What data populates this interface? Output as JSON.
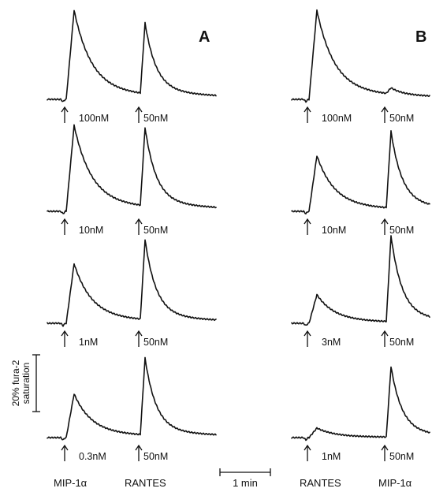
{
  "panels": [
    {
      "label": "A",
      "first_agent": "MIP-1α",
      "second_agent": "RANTES",
      "traces": [
        {
          "first_dose": "100nM",
          "second_dose": "50nM",
          "first_peak": 1.12,
          "second_peak": 0.92
        },
        {
          "first_dose": "10nM",
          "second_dose": "50nM",
          "first_peak": 1.08,
          "second_peak": 1.02
        },
        {
          "first_dose": "1nM",
          "second_dose": "50nM",
          "first_peak": 0.75,
          "second_peak": 1.04
        },
        {
          "first_dose": "0.3nM",
          "second_dose": "50nM",
          "first_peak": 0.55,
          "second_peak": 1.0
        }
      ]
    },
    {
      "label": "B",
      "first_agent": "RANTES",
      "second_agent": "MIP-1α",
      "traces": [
        {
          "first_dose": "100nM",
          "second_dose": "50nM",
          "first_peak": 1.12,
          "second_peak": 0.08
        },
        {
          "first_dose": "10nM",
          "second_dose": "50nM",
          "first_peak": 0.7,
          "second_peak": 1.0
        },
        {
          "first_dose": "3nM",
          "second_dose": "50nM",
          "first_peak": 0.36,
          "second_peak": 1.12
        },
        {
          "first_dose": "1nM",
          "second_dose": "50nM",
          "first_peak": 0.12,
          "second_peak": 0.92
        }
      ]
    }
  ],
  "scale_bars": {
    "y_label_line1": "20% fura-2",
    "y_label_line2": "saturation",
    "time_label": "1 min"
  },
  "chart_data": {
    "type": "line",
    "title": "",
    "xlabel": "",
    "ylabel": "",
    "y_scale_bar": "20% fura-2 saturation",
    "x_scale_bar": "1 min",
    "note": "Peak heights given as fraction of 20% fura-2 saturation scale bar (estimated)",
    "series": [
      {
        "panel": "A",
        "first_agent": "MIP-1α",
        "first_dose": "100nM",
        "second_agent": "RANTES",
        "second_dose": "50nM",
        "first_peak": 1.12,
        "second_peak": 0.92
      },
      {
        "panel": "A",
        "first_agent": "MIP-1α",
        "first_dose": "10nM",
        "second_agent": "RANTES",
        "second_dose": "50nM",
        "first_peak": 1.08,
        "second_peak": 1.02
      },
      {
        "panel": "A",
        "first_agent": "MIP-1α",
        "first_dose": "1nM",
        "second_agent": "RANTES",
        "second_dose": "50nM",
        "first_peak": 0.75,
        "second_peak": 1.04
      },
      {
        "panel": "A",
        "first_agent": "MIP-1α",
        "first_dose": "0.3nM",
        "second_agent": "RANTES",
        "second_dose": "50nM",
        "first_peak": 0.55,
        "second_peak": 1.0
      },
      {
        "panel": "B",
        "first_agent": "RANTES",
        "first_dose": "100nM",
        "second_agent": "MIP-1α",
        "second_dose": "50nM",
        "first_peak": 1.12,
        "second_peak": 0.08
      },
      {
        "panel": "B",
        "first_agent": "RANTES",
        "first_dose": "10nM",
        "second_agent": "MIP-1α",
        "second_dose": "50nM",
        "first_peak": 0.7,
        "second_peak": 1.0
      },
      {
        "panel": "B",
        "first_agent": "RANTES",
        "first_dose": "3nM",
        "second_agent": "MIP-1α",
        "second_dose": "50nM",
        "first_peak": 0.36,
        "second_peak": 1.12
      },
      {
        "panel": "B",
        "first_agent": "RANTES",
        "first_dose": "1nM",
        "second_agent": "MIP-1α",
        "second_dose": "50nM",
        "first_peak": 0.12,
        "second_peak": 0.92
      }
    ]
  }
}
